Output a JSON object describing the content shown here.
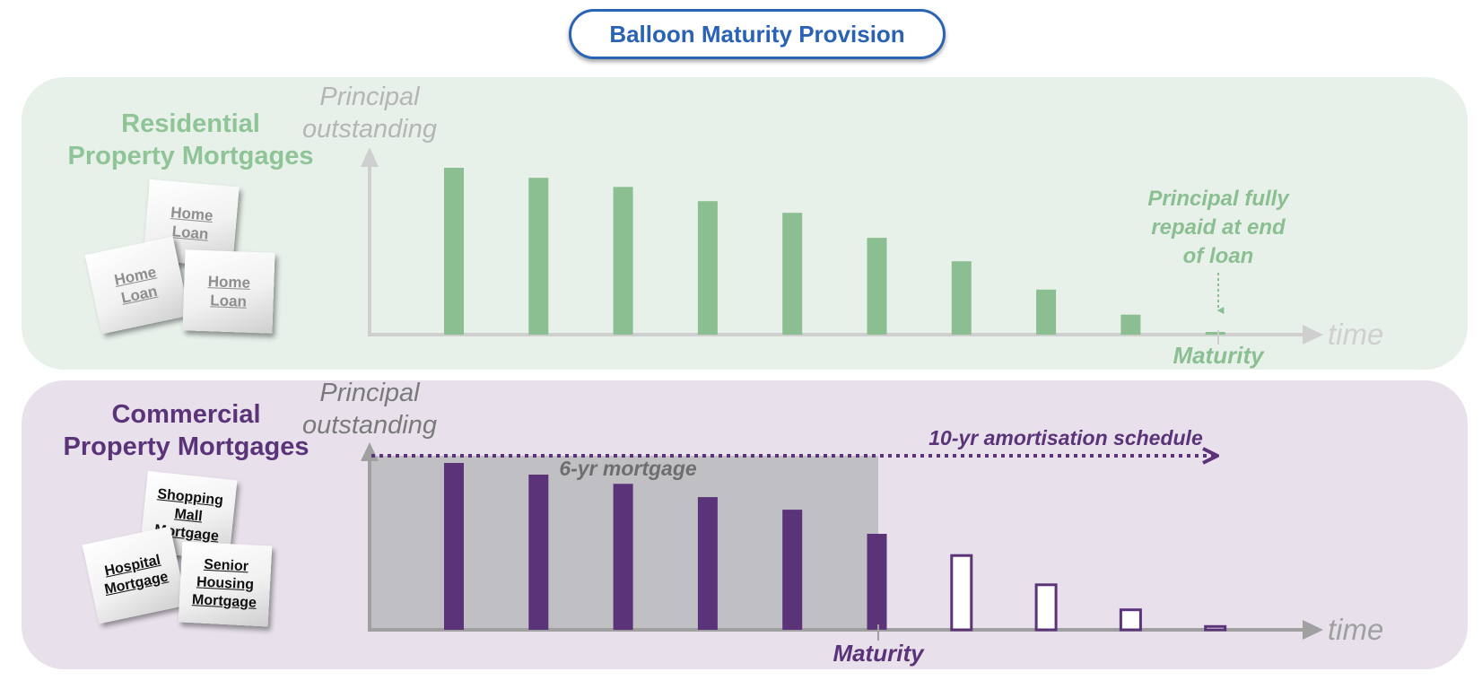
{
  "title": "Balloon Maturity Provision",
  "residential": {
    "title_lines": [
      "Residential",
      "Property Mortgages"
    ],
    "y_label_lines": [
      "Principal",
      "outstanding"
    ],
    "x_label": "time",
    "cards": [
      "Home Loan",
      "Home Loan",
      "Home Loan"
    ],
    "annotation_lines": [
      "Principal fully",
      "repaid at end",
      "of loan"
    ],
    "maturity_label": "Maturity"
  },
  "commercial": {
    "title_lines": [
      "Commercial",
      "Property Mortgages"
    ],
    "y_label_lines": [
      "Principal",
      "outstanding"
    ],
    "x_label": "time",
    "cards": [
      "Shopping Mall Mortgage",
      "Hospital Mortgage",
      "Senior Housing Mortgage"
    ],
    "term_label": "6-yr mortgage",
    "schedule_label": "10-yr amortisation schedule",
    "maturity_label": "Maturity"
  },
  "colors": {
    "title_blue": "#2a62b5",
    "residential_green": "#8bbf92",
    "commercial_purple": "#5a3378",
    "term_shade": "#c0bfc3",
    "axis_light": "#cfcfcf",
    "axis_dark": "#a0a0a0"
  },
  "chart_data": [
    {
      "type": "bar",
      "series": [
        {
          "values": [
            100,
            94,
            88.5,
            80,
            73,
            58,
            44,
            27,
            12,
            1
          ]
        }
      ],
      "maturity_index": 9,
      "ylim": [
        0,
        100
      ]
    },
    {
      "type": "bar",
      "series": [
        {
          "values": [
            100,
            93,
            87.5,
            79.5,
            72,
            57.5,
            44.5,
            27,
            12,
            2
          ]
        }
      ],
      "paid_until_index": 5,
      "maturity_index": 5,
      "schedule_length": 10,
      "ylim": [
        0,
        100
      ]
    }
  ]
}
